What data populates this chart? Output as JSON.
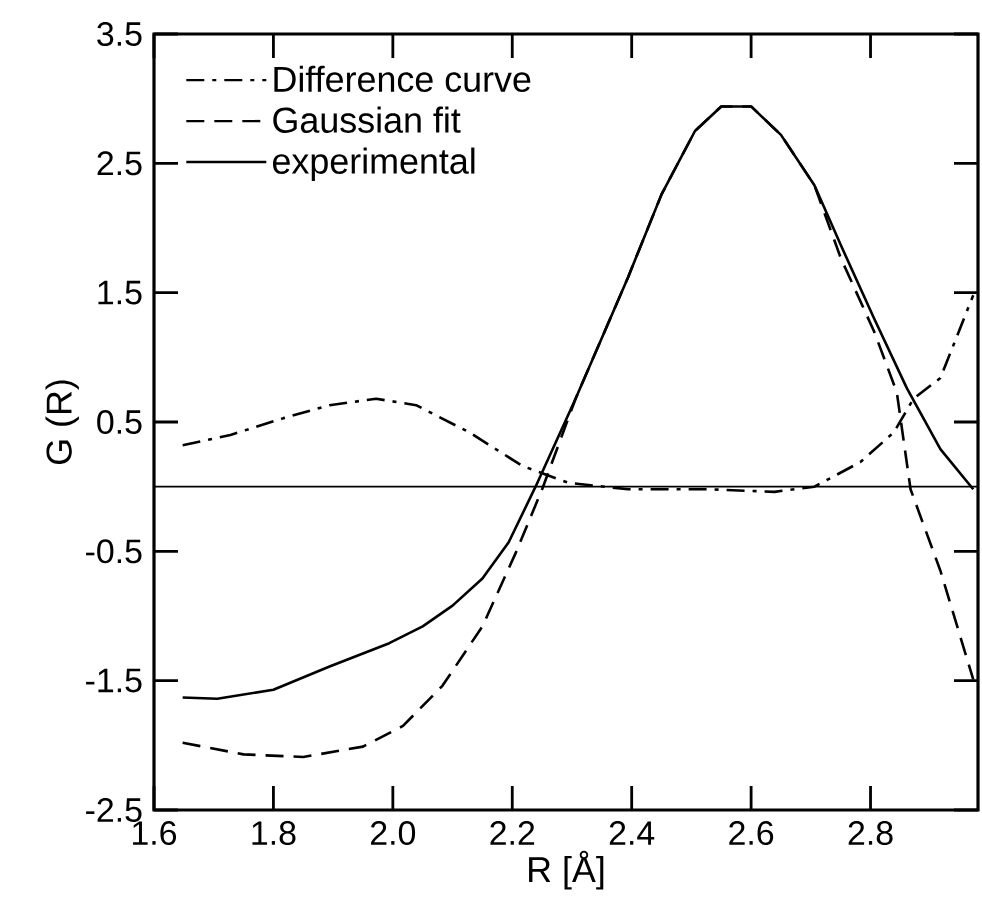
{
  "chart_data": {
    "type": "line",
    "xlabel": "R [Å]",
    "ylabel": "G (R)",
    "xlim": [
      1.6,
      2.98
    ],
    "ylim": [
      -2.5,
      3.5
    ],
    "xticks": [
      1.6,
      1.8,
      {
        "value": 2.0,
        "label": "2.0"
      },
      2.2,
      2.4,
      2.6,
      2.8
    ],
    "yticks": [
      3.5,
      2.5,
      1.5,
      0.5,
      -0.5,
      -1.5,
      -2.5
    ],
    "legend": "top left",
    "grid": false,
    "ref_lines": [
      {
        "axis": "y",
        "value": 0,
        "color": "#000000"
      }
    ],
    "series": [
      {
        "name": "Difference curve",
        "color": "#000000",
        "line_style": "dashdot",
        "x": [
          1.648,
          1.728,
          1.817,
          1.894,
          1.972,
          2.039,
          2.128,
          2.217,
          2.294,
          2.394,
          2.528,
          2.639,
          2.706,
          2.783,
          2.839,
          2.872,
          2.917,
          2.972
        ],
        "values": [
          0.32,
          0.4,
          0.53,
          0.63,
          0.68,
          0.63,
          0.42,
          0.16,
          0.03,
          -0.02,
          -0.02,
          -0.04,
          0.0,
          0.19,
          0.42,
          0.68,
          0.84,
          1.48
        ]
      },
      {
        "name": "Gaussian fit",
        "color": "#000000",
        "line_style": "dashed",
        "x": [
          1.648,
          1.75,
          1.85,
          1.95,
          2.017,
          2.083,
          2.15,
          2.206,
          2.25,
          2.306,
          2.394,
          2.45,
          2.506,
          2.55,
          2.6,
          2.65,
          2.706,
          2.75,
          2.806,
          2.844,
          2.867,
          2.917,
          2.972
        ],
        "values": [
          -1.98,
          -2.07,
          -2.09,
          -2.01,
          -1.85,
          -1.54,
          -1.08,
          -0.51,
          -0.02,
          0.68,
          1.62,
          2.26,
          2.75,
          2.94,
          2.94,
          2.72,
          2.33,
          1.77,
          1.2,
          0.73,
          -0.02,
          -0.65,
          -1.49
        ]
      },
      {
        "name": "experimental",
        "color": "#000000",
        "line_style": "solid",
        "x": [
          1.648,
          1.706,
          1.8,
          1.894,
          1.994,
          2.05,
          2.1,
          2.15,
          2.194,
          2.239,
          2.306,
          2.394,
          2.45,
          2.506,
          2.55,
          2.6,
          2.65,
          2.706,
          2.75,
          2.806,
          2.861,
          2.917,
          2.972
        ],
        "values": [
          -1.63,
          -1.64,
          -1.57,
          -1.39,
          -1.21,
          -1.08,
          -0.92,
          -0.71,
          -0.43,
          0.0,
          0.68,
          1.62,
          2.26,
          2.75,
          2.94,
          2.94,
          2.72,
          2.33,
          1.87,
          1.3,
          0.76,
          0.29,
          -0.02
        ]
      }
    ]
  }
}
